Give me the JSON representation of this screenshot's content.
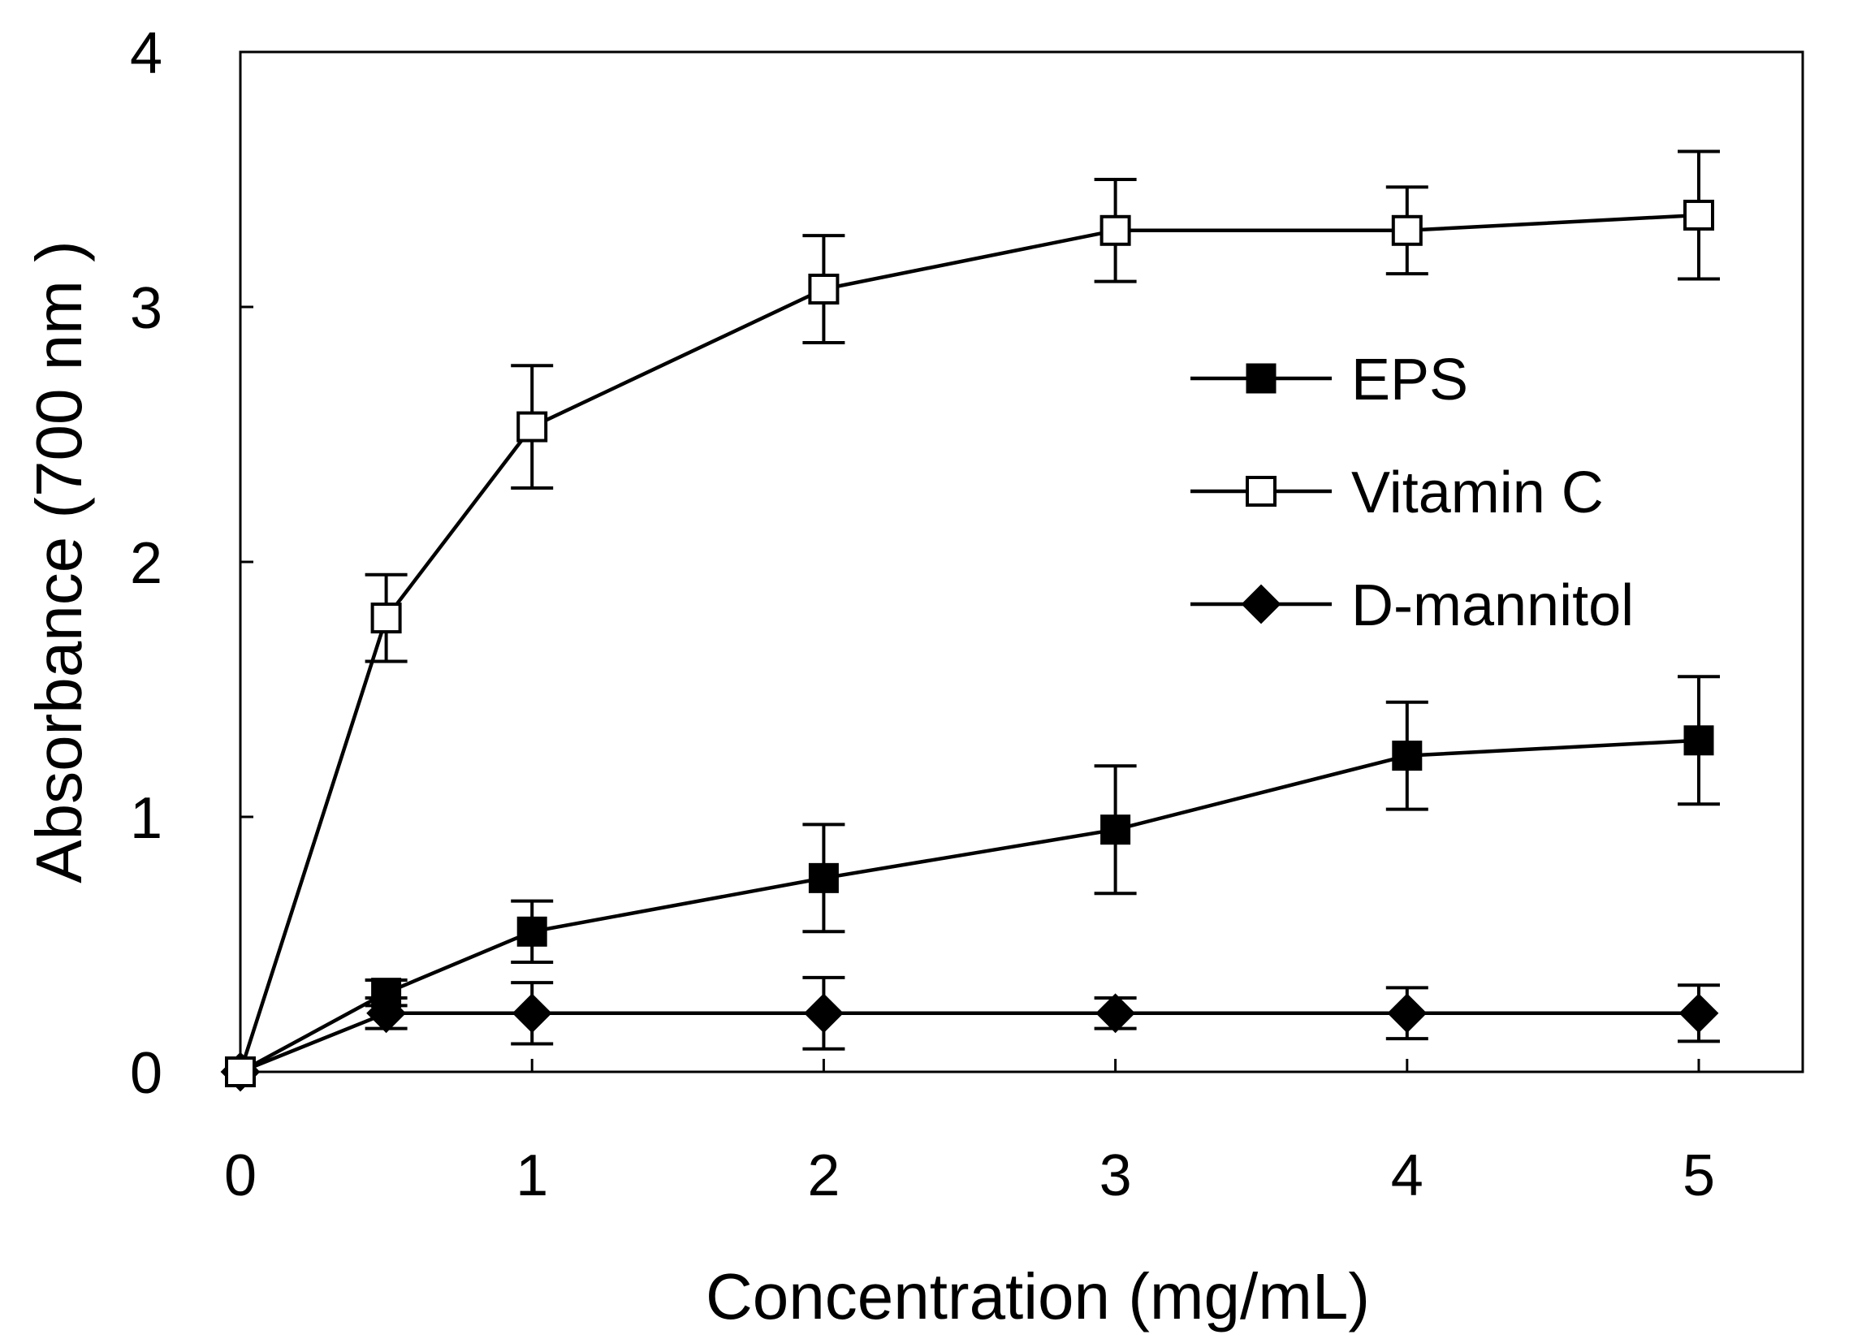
{
  "chart_data": {
    "type": "line",
    "title": "",
    "xlabel": "Concentration (mg/mL)",
    "ylabel": "Absorbance (700 nm )",
    "xlim": [
      0,
      5.4
    ],
    "ylim": [
      0,
      4
    ],
    "xticks": [
      0,
      1,
      2,
      3,
      4,
      5
    ],
    "xtick_labels": [
      "0",
      "1",
      "2",
      "3",
      "4",
      "5"
    ],
    "yticks": [
      0,
      1,
      2,
      3,
      4
    ],
    "ytick_labels": [
      "0",
      "1",
      "2",
      "3",
      "4"
    ],
    "grid": false,
    "legend_position": "top-right",
    "series": [
      {
        "name": "EPS",
        "marker": "filled-square",
        "x": [
          0,
          0.5,
          1,
          2,
          3,
          4,
          5
        ],
        "y": [
          0,
          0.31,
          0.55,
          0.76,
          0.95,
          1.24,
          1.3
        ],
        "error": [
          0,
          0.05,
          0.12,
          0.21,
          0.25,
          0.21,
          0.25
        ]
      },
      {
        "name": "Vitamin C",
        "marker": "open-square",
        "x": [
          0,
          0.5,
          1,
          2,
          3,
          4,
          5
        ],
        "y": [
          0,
          1.78,
          2.53,
          3.07,
          3.3,
          3.3,
          3.36
        ],
        "error": [
          0,
          0.17,
          0.24,
          0.21,
          0.2,
          0.17,
          0.25
        ]
      },
      {
        "name": "D-mannitol",
        "marker": "filled-diamond",
        "x": [
          0,
          0.5,
          1,
          2,
          3,
          4,
          5
        ],
        "y": [
          0,
          0.23,
          0.23,
          0.23,
          0.23,
          0.23,
          0.23
        ],
        "error": [
          0,
          0.06,
          0.12,
          0.14,
          0.06,
          0.1,
          0.11
        ]
      }
    ]
  }
}
